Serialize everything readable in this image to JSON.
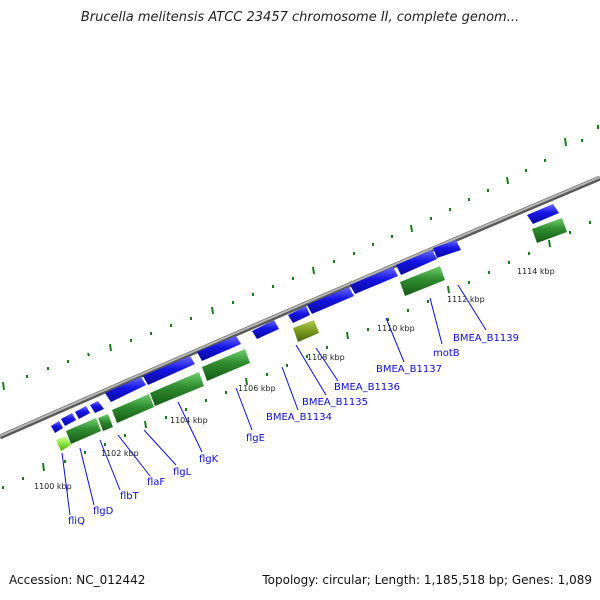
{
  "title": "Brucella melitensis ATCC 23457 chromosome II, complete genom...",
  "footer": {
    "accession": "Accession: NC_012442",
    "stats": "Topology: circular; Length: 1,185,518 bp; Genes: 1,089"
  },
  "colors": {
    "background": "#ffffff",
    "backbone": "#8a8a8a",
    "gene_blue": "#1414e6",
    "gene_green": "#2e8b2e",
    "gene_olive": "#7a9a1e",
    "gene_lightgreen": "#8ee63c",
    "tick_green": "#1e7a1e",
    "label_blue": "#1010c8"
  },
  "scale_ticks": [
    "1100 kbp",
    "1102 kbp",
    "1104 kbp",
    "1106 kbp",
    "1108 kbp",
    "1110 kbp",
    "1112 kbp",
    "1114 kbp"
  ],
  "gene_labels": [
    "fliQ",
    "flgD",
    "flbT",
    "flaF",
    "flgL",
    "flgK",
    "flgE",
    "BMEA_B1134",
    "BMEA_B1135",
    "BMEA_B1136",
    "BMEA_B1137",
    "motB",
    "BMEA_B1139"
  ]
}
